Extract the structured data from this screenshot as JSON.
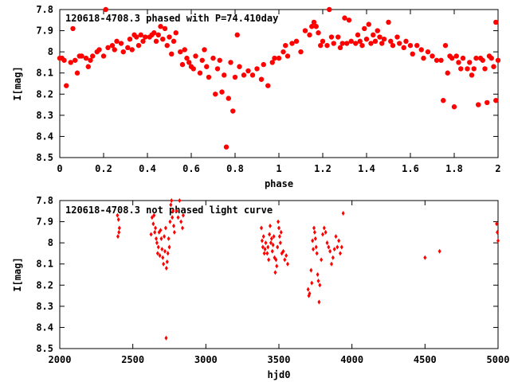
{
  "chart_data": [
    {
      "type": "scatter",
      "title": "120618-4708.3 phased with P=74.410day",
      "xlabel": "phase",
      "ylabel": "I[mag]",
      "xlim": [
        0,
        2
      ],
      "ylim": [
        8.5,
        7.8
      ],
      "y_inverted": true,
      "x_ticks": [
        "0",
        "0.2",
        "0.4",
        "0.6",
        "0.8",
        "1",
        "1.2",
        "1.4",
        "1.6",
        "1.8",
        "2"
      ],
      "y_ticks": [
        "7.8",
        "7.9",
        "8",
        "8.1",
        "8.2",
        "8.3",
        "8.4",
        "8.5"
      ],
      "marker": "filled-circle",
      "color": "#ff0000",
      "points": [
        [
          0.0,
          8.03
        ],
        [
          0.01,
          8.03
        ],
        [
          0.02,
          8.04
        ],
        [
          0.03,
          8.16
        ],
        [
          0.05,
          8.05
        ],
        [
          0.06,
          7.89
        ],
        [
          0.07,
          8.04
        ],
        [
          0.08,
          8.1
        ],
        [
          0.09,
          8.02
        ],
        [
          0.1,
          8.02
        ],
        [
          0.12,
          8.03
        ],
        [
          0.13,
          8.07
        ],
        [
          0.14,
          8.04
        ],
        [
          0.15,
          8.02
        ],
        [
          0.17,
          8.0
        ],
        [
          0.18,
          7.99
        ],
        [
          0.2,
          8.02
        ],
        [
          0.21,
          7.8
        ],
        [
          0.22,
          7.98
        ],
        [
          0.24,
          7.97
        ],
        [
          0.25,
          7.99
        ],
        [
          0.26,
          7.95
        ],
        [
          0.28,
          7.96
        ],
        [
          0.29,
          8.0
        ],
        [
          0.31,
          7.98
        ],
        [
          0.32,
          7.94
        ],
        [
          0.33,
          7.99
        ],
        [
          0.34,
          7.92
        ],
        [
          0.35,
          7.93
        ],
        [
          0.36,
          7.97
        ],
        [
          0.37,
          7.92
        ],
        [
          0.38,
          7.95
        ],
        [
          0.39,
          7.93
        ],
        [
          0.41,
          7.93
        ],
        [
          0.42,
          7.92
        ],
        [
          0.43,
          7.91
        ],
        [
          0.44,
          7.95
        ],
        [
          0.45,
          7.92
        ],
        [
          0.46,
          7.88
        ],
        [
          0.47,
          7.94
        ],
        [
          0.48,
          7.89
        ],
        [
          0.49,
          7.97
        ],
        [
          0.5,
          7.93
        ],
        [
          0.51,
          8.01
        ],
        [
          0.52,
          7.95
        ],
        [
          0.53,
          7.91
        ],
        [
          0.55,
          8.0
        ],
        [
          0.56,
          8.06
        ],
        [
          0.57,
          7.99
        ],
        [
          0.58,
          8.03
        ],
        [
          0.59,
          8.05
        ],
        [
          0.6,
          8.07
        ],
        [
          0.61,
          8.08
        ],
        [
          0.62,
          8.02
        ],
        [
          0.64,
          8.1
        ],
        [
          0.65,
          8.04
        ],
        [
          0.66,
          7.99
        ],
        [
          0.67,
          8.07
        ],
        [
          0.68,
          8.12
        ],
        [
          0.7,
          8.03
        ],
        [
          0.71,
          8.2
        ],
        [
          0.72,
          8.08
        ],
        [
          0.73,
          8.04
        ],
        [
          0.74,
          8.19
        ],
        [
          0.75,
          8.11
        ],
        [
          0.76,
          8.45
        ],
        [
          0.77,
          8.22
        ],
        [
          0.78,
          8.05
        ],
        [
          0.79,
          8.28
        ],
        [
          0.8,
          8.12
        ],
        [
          0.81,
          7.92
        ],
        [
          0.82,
          8.07
        ],
        [
          0.84,
          8.11
        ],
        [
          0.86,
          8.09
        ],
        [
          0.88,
          8.11
        ],
        [
          0.9,
          8.08
        ],
        [
          0.92,
          8.13
        ],
        [
          0.93,
          8.06
        ],
        [
          0.95,
          8.16
        ],
        [
          0.97,
          8.05
        ],
        [
          0.98,
          8.03
        ],
        [
          1.0,
          8.03
        ],
        [
          1.02,
          8.0
        ],
        [
          1.03,
          7.97
        ],
        [
          1.04,
          8.02
        ],
        [
          1.06,
          7.96
        ],
        [
          1.08,
          7.95
        ],
        [
          1.1,
          8.0
        ],
        [
          1.12,
          7.9
        ],
        [
          1.14,
          7.92
        ],
        [
          1.15,
          7.88
        ],
        [
          1.16,
          7.86
        ],
        [
          1.17,
          7.88
        ],
        [
          1.18,
          7.91
        ],
        [
          1.19,
          7.97
        ],
        [
          1.2,
          7.95
        ],
        [
          1.22,
          7.97
        ],
        [
          1.23,
          7.8
        ],
        [
          1.24,
          7.93
        ],
        [
          1.25,
          7.96
        ],
        [
          1.27,
          7.93
        ],
        [
          1.28,
          7.98
        ],
        [
          1.29,
          7.96
        ],
        [
          1.3,
          7.84
        ],
        [
          1.31,
          7.96
        ],
        [
          1.32,
          7.85
        ],
        [
          1.33,
          7.95
        ],
        [
          1.35,
          7.96
        ],
        [
          1.36,
          7.92
        ],
        [
          1.37,
          7.95
        ],
        [
          1.38,
          7.97
        ],
        [
          1.39,
          7.89
        ],
        [
          1.4,
          7.94
        ],
        [
          1.41,
          7.87
        ],
        [
          1.42,
          7.96
        ],
        [
          1.43,
          7.92
        ],
        [
          1.44,
          7.95
        ],
        [
          1.45,
          7.9
        ],
        [
          1.46,
          7.93
        ],
        [
          1.47,
          7.96
        ],
        [
          1.48,
          7.94
        ],
        [
          1.5,
          7.86
        ],
        [
          1.51,
          7.95
        ],
        [
          1.52,
          7.97
        ],
        [
          1.54,
          7.93
        ],
        [
          1.55,
          7.96
        ],
        [
          1.57,
          7.98
        ],
        [
          1.58,
          7.95
        ],
        [
          1.6,
          7.97
        ],
        [
          1.61,
          8.01
        ],
        [
          1.63,
          7.97
        ],
        [
          1.65,
          7.99
        ],
        [
          1.66,
          8.03
        ],
        [
          1.68,
          8.0
        ],
        [
          1.7,
          8.02
        ],
        [
          1.72,
          8.04
        ],
        [
          1.74,
          8.04
        ],
        [
          1.75,
          8.23
        ],
        [
          1.76,
          7.97
        ],
        [
          1.77,
          8.1
        ],
        [
          1.78,
          8.02
        ],
        [
          1.79,
          8.03
        ],
        [
          1.8,
          8.26
        ],
        [
          1.81,
          8.02
        ],
        [
          1.82,
          8.05
        ],
        [
          1.83,
          8.08
        ],
        [
          1.84,
          8.03
        ],
        [
          1.86,
          8.08
        ],
        [
          1.87,
          8.05
        ],
        [
          1.88,
          8.11
        ],
        [
          1.89,
          8.08
        ],
        [
          1.9,
          8.03
        ],
        [
          1.91,
          8.25
        ],
        [
          1.92,
          8.03
        ],
        [
          1.93,
          8.04
        ],
        [
          1.94,
          8.08
        ],
        [
          1.95,
          8.24
        ],
        [
          1.96,
          8.02
        ],
        [
          1.97,
          8.03
        ],
        [
          1.98,
          8.07
        ],
        [
          1.99,
          8.23
        ],
        [
          1.99,
          7.86
        ],
        [
          2.0,
          8.04
        ]
      ]
    },
    {
      "type": "scatter",
      "title": "120618-4708.3 not phased light curve",
      "xlabel": "hjd0",
      "ylabel": "I[mag]",
      "xlim": [
        2000,
        5000
      ],
      "ylim": [
        8.5,
        7.8
      ],
      "y_inverted": true,
      "x_ticks": [
        "2000",
        "2500",
        "3000",
        "3500",
        "4000",
        "4500",
        "5000"
      ],
      "y_ticks": [
        "7.8",
        "7.9",
        "8",
        "8.1",
        "8.2",
        "8.3",
        "8.4",
        "8.5"
      ],
      "marker": "diamond",
      "color": "#ff0000",
      "points": [
        [
          2395,
          7.87
        ],
        [
          2398,
          7.97
        ],
        [
          2402,
          7.89
        ],
        [
          2405,
          7.95
        ],
        [
          2408,
          7.93
        ],
        [
          2625,
          7.96
        ],
        [
          2632,
          7.88
        ],
        [
          2640,
          7.91
        ],
        [
          2645,
          7.87
        ],
        [
          2650,
          7.95
        ],
        [
          2655,
          7.93
        ],
        [
          2660,
          7.98
        ],
        [
          2665,
          8.0
        ],
        [
          2670,
          8.05
        ],
        [
          2675,
          8.02
        ],
        [
          2680,
          7.95
        ],
        [
          2685,
          8.06
        ],
        [
          2690,
          7.94
        ],
        [
          2695,
          7.98
        ],
        [
          2700,
          8.03
        ],
        [
          2705,
          8.07
        ],
        [
          2710,
          8.1
        ],
        [
          2715,
          7.97
        ],
        [
          2720,
          8.04
        ],
        [
          2725,
          7.93
        ],
        [
          2728,
          8.45
        ],
        [
          2730,
          8.12
        ],
        [
          2735,
          8.09
        ],
        [
          2740,
          8.05
        ],
        [
          2745,
          7.98
        ],
        [
          2750,
          8.02
        ],
        [
          2755,
          7.9
        ],
        [
          2760,
          7.82
        ],
        [
          2765,
          7.8
        ],
        [
          2770,
          7.88
        ],
        [
          2775,
          7.85
        ],
        [
          2780,
          7.92
        ],
        [
          2785,
          7.95
        ],
        [
          2800,
          7.85
        ],
        [
          2810,
          7.88
        ],
        [
          2820,
          7.8
        ],
        [
          2830,
          7.9
        ],
        [
          2840,
          7.93
        ],
        [
          2845,
          7.87
        ],
        [
          3380,
          7.93
        ],
        [
          3385,
          7.99
        ],
        [
          3390,
          8.02
        ],
        [
          3395,
          7.97
        ],
        [
          3400,
          8.05
        ],
        [
          3405,
          8.03
        ],
        [
          3410,
          8.0
        ],
        [
          3420,
          8.05
        ],
        [
          3425,
          8.02
        ],
        [
          3430,
          8.08
        ],
        [
          3435,
          7.96
        ],
        [
          3440,
          7.92
        ],
        [
          3445,
          8.0
        ],
        [
          3450,
          7.98
        ],
        [
          3455,
          8.04
        ],
        [
          3460,
          8.01
        ],
        [
          3465,
          7.97
        ],
        [
          3470,
          8.07
        ],
        [
          3475,
          8.14
        ],
        [
          3480,
          8.08
        ],
        [
          3485,
          8.11
        ],
        [
          3490,
          8.02
        ],
        [
          3495,
          7.9
        ],
        [
          3500,
          7.93
        ],
        [
          3505,
          7.97
        ],
        [
          3510,
          8.0
        ],
        [
          3515,
          7.95
        ],
        [
          3520,
          8.05
        ],
        [
          3530,
          8.04
        ],
        [
          3540,
          8.08
        ],
        [
          3550,
          8.06
        ],
        [
          3560,
          8.1
        ],
        [
          3700,
          8.22
        ],
        [
          3705,
          8.25
        ],
        [
          3710,
          8.24
        ],
        [
          3720,
          8.13
        ],
        [
          3725,
          8.19
        ],
        [
          3730,
          7.99
        ],
        [
          3735,
          8.03
        ],
        [
          3740,
          7.93
        ],
        [
          3745,
          7.95
        ],
        [
          3750,
          7.98
        ],
        [
          3755,
          8.02
        ],
        [
          3760,
          8.05
        ],
        [
          3765,
          8.15
        ],
        [
          3770,
          8.18
        ],
        [
          3775,
          8.28
        ],
        [
          3780,
          8.2
        ],
        [
          3790,
          8.08
        ],
        [
          3800,
          7.96
        ],
        [
          3810,
          7.93
        ],
        [
          3820,
          7.95
        ],
        [
          3830,
          8.0
        ],
        [
          3840,
          8.02
        ],
        [
          3850,
          8.04
        ],
        [
          3860,
          8.1
        ],
        [
          3870,
          8.07
        ],
        [
          3880,
          8.03
        ],
        [
          3890,
          7.97
        ],
        [
          3900,
          8.02
        ],
        [
          3910,
          7.99
        ],
        [
          3920,
          8.05
        ],
        [
          3930,
          8.02
        ],
        [
          3940,
          7.86
        ],
        [
          4500,
          8.07
        ],
        [
          4600,
          8.04
        ],
        [
          4990,
          7.91
        ],
        [
          4995,
          7.95
        ],
        [
          5000,
          7.99
        ]
      ]
    }
  ]
}
